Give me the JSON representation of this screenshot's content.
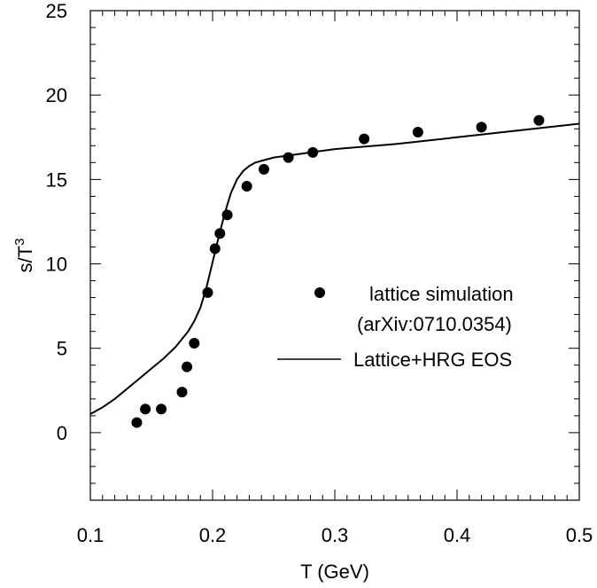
{
  "chart_data": {
    "type": "scatter",
    "xlabel": "T (GeV)",
    "ylabel_main": "s/T",
    "ylabel_sup": "3",
    "xlim": [
      0.1,
      0.5
    ],
    "ylim": [
      -4,
      25
    ],
    "x_ticks": [
      0.1,
      0.2,
      0.3,
      0.4,
      0.5
    ],
    "x_tick_labels": [
      "0.1",
      "0.2",
      "0.3",
      "0.4",
      "0.5"
    ],
    "y_ticks": [
      0,
      5,
      10,
      15,
      20,
      25
    ],
    "y_tick_labels": [
      "0",
      "5",
      "10",
      "15",
      "20",
      "25"
    ],
    "grid": false,
    "legend_position": "right",
    "series": [
      {
        "name": "lattice simulation",
        "name_line2": "(arXiv:0710.0354)",
        "kind": "points",
        "color": "#000000",
        "x": [
          0.138,
          0.145,
          0.158,
          0.175,
          0.179,
          0.185,
          0.196,
          0.202,
          0.206,
          0.212,
          0.228,
          0.242,
          0.262,
          0.282,
          0.324,
          0.368,
          0.42,
          0.467
        ],
        "y": [
          0.6,
          1.4,
          1.4,
          2.4,
          3.9,
          5.3,
          8.3,
          10.9,
          11.8,
          12.9,
          14.6,
          15.6,
          16.3,
          16.6,
          17.4,
          17.8,
          18.1,
          18.5
        ]
      },
      {
        "name": "Lattice+HRG EOS",
        "kind": "line",
        "color": "#000000",
        "x": [
          0.1,
          0.11,
          0.12,
          0.13,
          0.14,
          0.15,
          0.16,
          0.17,
          0.18,
          0.185,
          0.19,
          0.195,
          0.2,
          0.205,
          0.21,
          0.215,
          0.22,
          0.225,
          0.23,
          0.235,
          0.24,
          0.25,
          0.26,
          0.28,
          0.3,
          0.35,
          0.4,
          0.45,
          0.5
        ],
        "y": [
          1.1,
          1.5,
          2.0,
          2.6,
          3.2,
          3.8,
          4.4,
          5.1,
          6.0,
          6.6,
          7.4,
          8.6,
          10.1,
          11.6,
          13.0,
          14.2,
          15.0,
          15.5,
          15.8,
          16.0,
          16.1,
          16.3,
          16.4,
          16.6,
          16.8,
          17.1,
          17.5,
          17.9,
          18.3
        ]
      }
    ]
  }
}
